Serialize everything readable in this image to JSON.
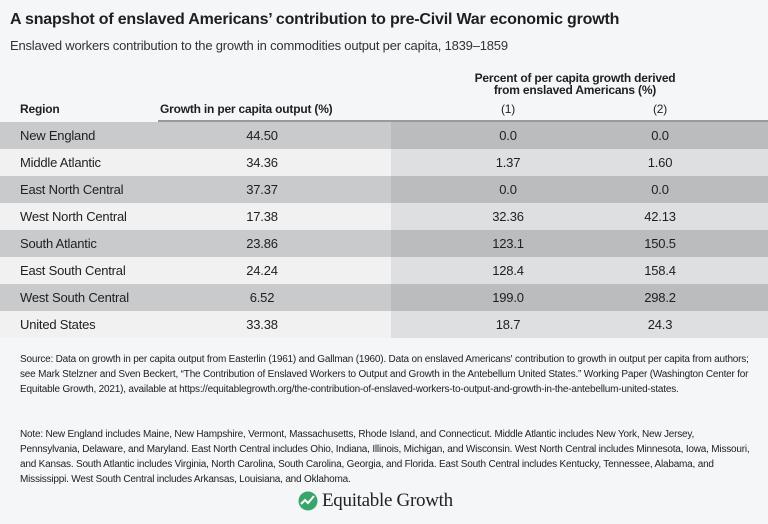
{
  "title": "A snapshot of enslaved Americans’ contribution to pre-Civil War economic growth",
  "subtitle": "Enslaved workers contribution to the growth in commodities output per capita, 1839–1859",
  "chart_data": {
    "type": "table",
    "columns": [
      "Region",
      "Growth in per capita output (%)",
      "(1)",
      "(2)"
    ],
    "group_header": "Percent of per capita growth derived from enslaved Americans (%)",
    "group_header_line1": "Percent of per capita growth derived",
    "group_header_line2": "from enslaved Americans (%)",
    "rows": [
      [
        "New England",
        "44.50",
        "0.0",
        "0.0"
      ],
      [
        "Middle Atlantic",
        "34.36",
        "1.37",
        "1.60"
      ],
      [
        "East North Central",
        "37.37",
        "0.0",
        "0.0"
      ],
      [
        "West North Central",
        "17.38",
        "32.36",
        "42.13"
      ],
      [
        "South Atlantic",
        "23.86",
        "123.1",
        "150.5"
      ],
      [
        "East South Central",
        "24.24",
        "128.4",
        "158.4"
      ],
      [
        "West South Central",
        "6.52",
        "199.0",
        "298.2"
      ],
      [
        "United States",
        "33.38",
        "18.7",
        "24.3"
      ]
    ]
  },
  "source": "Source: Data on growth in per capita output from Easterlin (1961) and Gallman (1960). Data on enslaved Americans' contribution to growth in output per capita from authors; see Mark Stelzner and Sven Beckert, “The Contribution of Enslaved Workers to Output and Growth in the Antebellum United States.” Working Paper (Washington Center for Equitable Growth, 2021), available at https://equitablegrowth.org/the-contribution-of-enslaved-workers-to-output-and-growth-in-the-antebellum-united-states.",
  "note": "Note: New England includes Maine, New Hampshire, Vermont, Massachusetts, Rhode Island, and Connecticut. Middle Atlantic includes New York, New Jersey, Pennsylvania, Delaware, and Maryland. East North Central includes Ohio, Indiana, Illinois, Michigan, and Wisconsin. West North Central includes Minnesota, Iowa, Missouri, and Kansas. South Atlantic includes Virginia, North Carolina, South Carolina, Georgia, and Florida. East South Central includes Kentucky, Tennessee, Alabama, and Mississippi. West South Central includes Arkansas, Louisiana, and Oklahoma.",
  "logo": {
    "text": "Equitable Growth",
    "color": "#3aa56b"
  }
}
